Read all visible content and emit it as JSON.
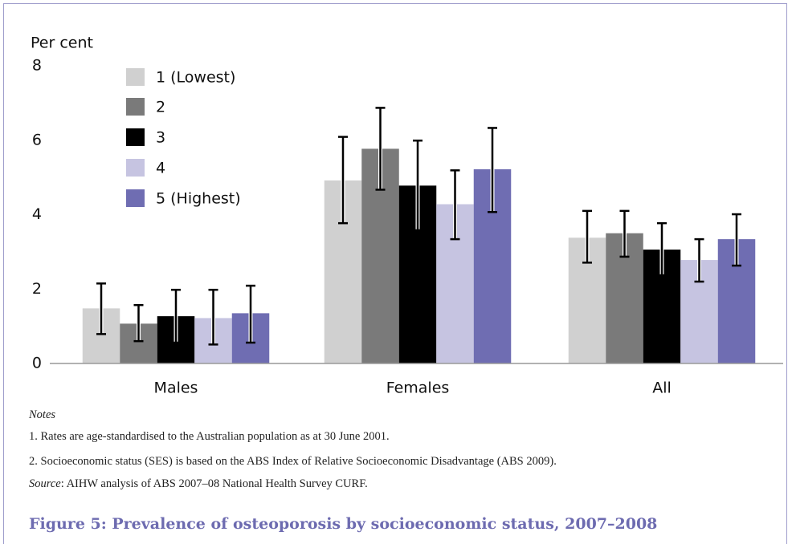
{
  "chart_data": {
    "type": "bar",
    "y_label": "Per cent",
    "categories": [
      "Males",
      "Females",
      "All"
    ],
    "ylim": [
      0,
      8
    ],
    "yticks": [
      0,
      2,
      4,
      6,
      8
    ],
    "series": [
      {
        "name": "1 (Lowest)",
        "color": "#d0d0d0",
        "values": [
          1.48,
          4.92,
          3.38
        ],
        "ci_low": [
          0.79,
          3.77,
          2.71
        ],
        "ci_high": [
          2.15,
          6.09,
          4.1
        ]
      },
      {
        "name": "2",
        "color": "#7a7a7a",
        "values": [
          1.07,
          5.77,
          3.5
        ],
        "ci_low": [
          0.6,
          4.67,
          2.87
        ],
        "ci_high": [
          1.57,
          6.87,
          4.1
        ]
      },
      {
        "name": "3",
        "color": "#000000",
        "values": [
          1.27,
          4.78,
          3.06
        ],
        "ci_low": [
          0.56,
          3.58,
          2.37
        ],
        "ci_high": [
          1.98,
          5.99,
          3.77
        ]
      },
      {
        "name": "4",
        "color": "#c6c4e1",
        "values": [
          1.22,
          4.28,
          2.78
        ],
        "ci_low": [
          0.51,
          3.34,
          2.2
        ],
        "ci_high": [
          1.98,
          5.19,
          3.34
        ]
      },
      {
        "name": "5 (Highest)",
        "color": "#6f6db2",
        "values": [
          1.35,
          5.22,
          3.34
        ],
        "ci_low": [
          0.56,
          4.07,
          2.63
        ],
        "ci_high": [
          2.09,
          6.33,
          4.01
        ]
      }
    ]
  },
  "notes": {
    "heading": "Notes",
    "items": [
      "1. Rates are age-standardised to the Australian population as at 30 June 2001.",
      "2. Socioeconomic status (SES) is based on the ABS Index of Relative Socioeconomic Disadvantage (ABS 2009)."
    ],
    "source_label": "Source",
    "source_text": ": AIHW analysis of ABS 2007–08 National Health Survey CURF."
  },
  "caption": "Figure 5: Prevalence of osteoporosis by socioeconomic status, 2007–2008"
}
